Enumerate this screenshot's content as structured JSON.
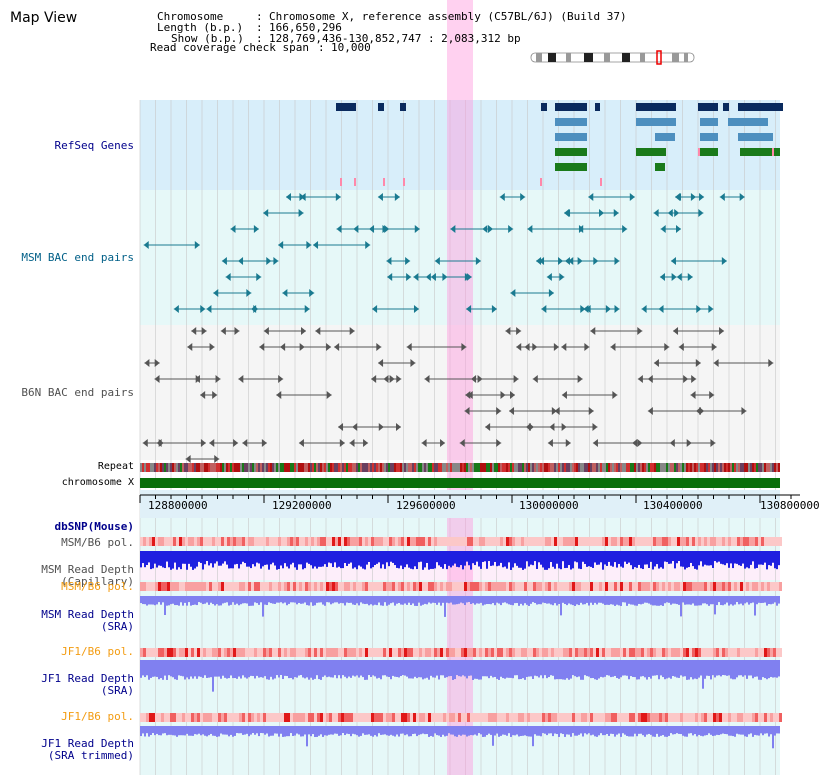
{
  "title": "Map View",
  "info": {
    "chromosome_key": "Chromosome",
    "chromosome_val": "Chromosome X, reference assembly (C57BL/6J) (Build 37)",
    "length_key": "Length (b.p.)",
    "length_val": "166,650,296",
    "show_key": "Show (b.p.)",
    "show_val": "128,769,436-130,852,747 : 2,083,312 bp",
    "coverage_key": "Read coverage check span",
    "coverage_val": "10,000"
  },
  "tracks": {
    "refseq": "RefSeq Genes",
    "msm_bac": "MSM BAC end pairs",
    "b6n_bac": "B6N BAC end pairs",
    "repeat": "Repeat",
    "chromosome": "chromosome X",
    "dbsnp": "dbSNP(Mouse)",
    "msm_b6_pol_1": "MSM/B6 pol.",
    "msm_depth_cap_1": "MSM Read Depth",
    "msm_depth_cap_2": "(Capillary)",
    "msm_b6_pol_2": "MSM/B6 pol.",
    "msm_depth_sra_1": "MSM Read Depth",
    "msm_depth_sra_2": "(SRA)",
    "jf1_b6_pol_1": "JF1/B6 pol.",
    "jf1_depth_sra_1": "JF1 Read Depth",
    "jf1_depth_sra_2": "(SRA)",
    "jf1_b6_pol_2": "JF1/B6 pol.",
    "jf1_depth_trim_1": "JF1 Read Depth",
    "jf1_depth_trim_2": "(SRA trimmed)"
  },
  "axis": {
    "ticks": [
      "128800000",
      "129200000",
      "129600000",
      "130000000",
      "130400000",
      "130800000"
    ]
  },
  "colors": {
    "refseq_label": "#00008b",
    "msm_label": "#005f87",
    "b6n_label": "#505050",
    "pol_label": "#f39c12",
    "depth_label": "#00008b",
    "highlight": "#ff99dd",
    "gene_navy": "#0a2a5e",
    "gene_blue": "#4d8fbf",
    "gene_green": "#1a7a1a",
    "bac_teal": "#1a7a90",
    "bac_gray": "#555555",
    "chrom_green": "#0a6e0a",
    "depth_blue": "#1f1fe0",
    "depth_lav": "#8080f0"
  }
}
